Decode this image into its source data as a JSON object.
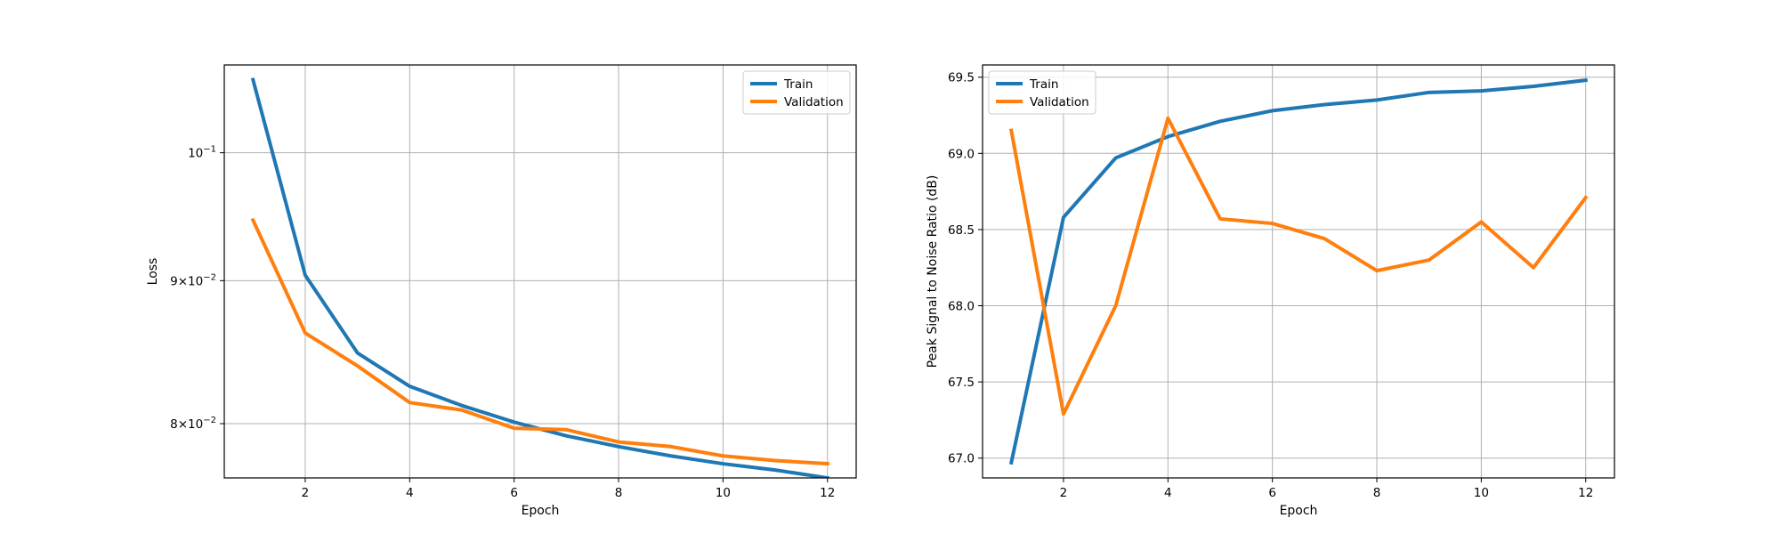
{
  "chart_data": [
    {
      "type": "line",
      "title": "",
      "xlabel": "Epoch",
      "ylabel": "Loss",
      "yscale": "log",
      "grid": true,
      "legend_placement": "top-right",
      "xlim": [
        0.45,
        12.55
      ],
      "ylim": [
        0.0765,
        0.1075
      ],
      "xticks": [
        2,
        4,
        6,
        8,
        10,
        12
      ],
      "xtick_labels": [
        "2",
        "4",
        "6",
        "8",
        "10",
        "12"
      ],
      "yticks": [
        0.08,
        0.09,
        0.1
      ],
      "ytick_labels": [
        {
          "mantissa": "8",
          "times": "×",
          "base": "10",
          "exp": "−2"
        },
        {
          "mantissa": "9",
          "times": "×",
          "base": "10",
          "exp": "−2"
        },
        {
          "mantissa": "",
          "times": "",
          "base": "10",
          "exp": "−1"
        }
      ],
      "series": [
        {
          "name": "Train",
          "color": "#1f77b4",
          "x": [
            1,
            2,
            3,
            4,
            5,
            6,
            7,
            8,
            9,
            10,
            11,
            12
          ],
          "y": [
            0.1062,
            0.0904,
            0.0848,
            0.0825,
            0.0812,
            0.0801,
            0.0792,
            0.0785,
            0.0779,
            0.0774,
            0.077,
            0.0765
          ]
        },
        {
          "name": "Validation",
          "color": "#ff7f0e",
          "x": [
            1,
            2,
            3,
            4,
            5,
            6,
            7,
            8,
            9,
            10,
            11,
            12
          ],
          "y": [
            0.0946,
            0.0862,
            0.0839,
            0.0814,
            0.0809,
            0.0797,
            0.0796,
            0.0788,
            0.0785,
            0.0779,
            0.0776,
            0.0774
          ]
        }
      ]
    },
    {
      "type": "line",
      "title": "",
      "xlabel": "Epoch",
      "ylabel": "Peak Signal to Noise Ratio (dB)",
      "grid": true,
      "legend_placement": "top-left",
      "xlim": [
        0.45,
        12.55
      ],
      "ylim": [
        66.87,
        69.58
      ],
      "xticks": [
        2,
        4,
        6,
        8,
        10,
        12
      ],
      "xtick_labels": [
        "2",
        "4",
        "6",
        "8",
        "10",
        "12"
      ],
      "yticks": [
        67.0,
        67.5,
        68.0,
        68.5,
        69.0,
        69.5
      ],
      "ytick_labels": [
        "67.0",
        "67.5",
        "68.0",
        "68.5",
        "69.0",
        "69.5"
      ],
      "series": [
        {
          "name": "Train",
          "color": "#1f77b4",
          "x": [
            1,
            2,
            3,
            4,
            5,
            6,
            7,
            8,
            9,
            10,
            11,
            12
          ],
          "y": [
            66.97,
            68.58,
            68.97,
            69.11,
            69.21,
            69.28,
            69.32,
            69.35,
            69.4,
            69.41,
            69.44,
            69.48
          ]
        },
        {
          "name": "Validation",
          "color": "#ff7f0e",
          "x": [
            1,
            2,
            3,
            4,
            5,
            6,
            7,
            8,
            9,
            10,
            11,
            12
          ],
          "y": [
            69.15,
            67.29,
            68.0,
            69.23,
            68.57,
            68.54,
            68.44,
            68.23,
            68.3,
            68.55,
            68.25,
            68.71
          ]
        }
      ]
    }
  ]
}
